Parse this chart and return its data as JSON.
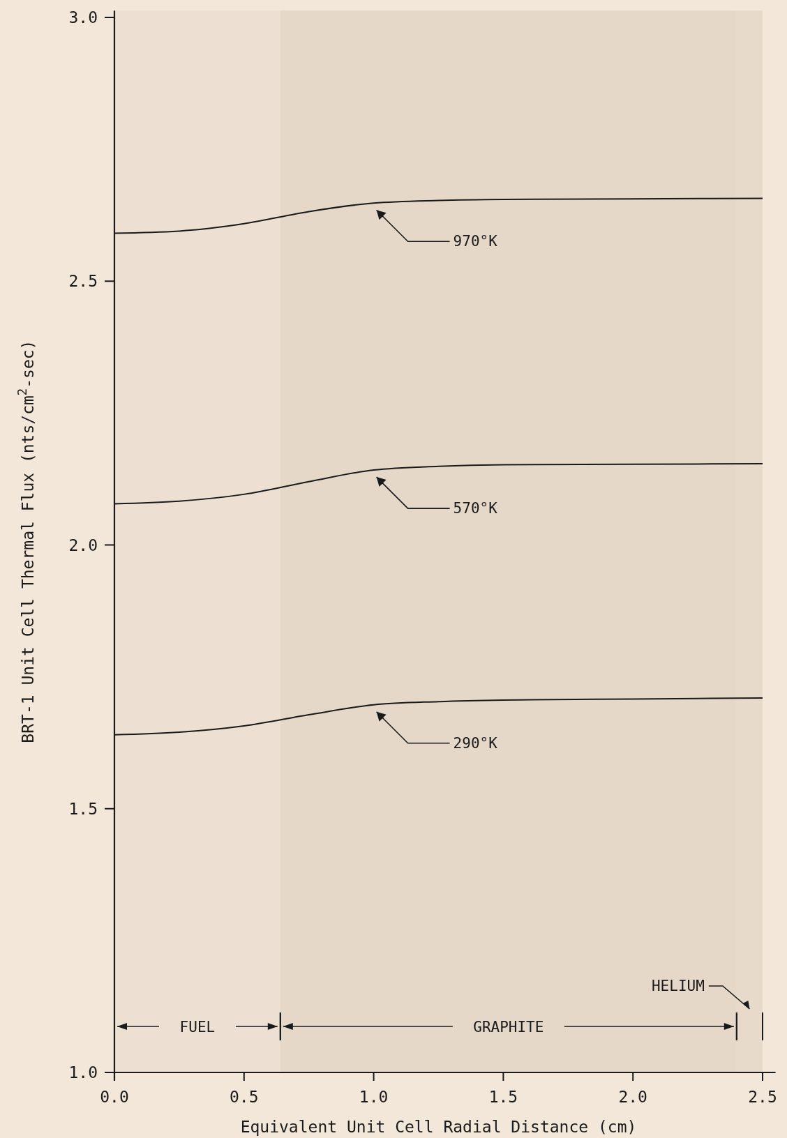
{
  "chart_data": {
    "type": "line",
    "xlabel": "Equivalent Unit Cell Radial Distance (cm)",
    "ylabel": "BRT-1 Unit Cell Thermal Flux (nts/cm$^{2}$-sec)",
    "x": [
      0,
      0.25,
      0.5,
      0.75,
      1.0,
      1.25,
      1.5,
      2.0,
      2.5
    ],
    "series": [
      {
        "name": "970°K",
        "color": "#1a1a1a",
        "values": [
          2.591,
          2.595,
          2.609,
          2.632,
          2.648,
          2.653,
          2.655,
          2.656,
          2.657
        ]
      },
      {
        "name": "570°K",
        "color": "#1a1a1a",
        "values": [
          2.078,
          2.083,
          2.096,
          2.12,
          2.142,
          2.149,
          2.152,
          2.153,
          2.154
        ]
      },
      {
        "name": "290°K",
        "color": "#1a1a1a",
        "values": [
          1.64,
          1.645,
          1.657,
          1.678,
          1.697,
          1.703,
          1.706,
          1.708,
          1.71
        ]
      }
    ],
    "xlim": [
      0,
      2.55
    ],
    "xticks": [
      {
        "value": 0,
        "label": "0.0"
      },
      0.5,
      {
        "value": 1,
        "label": "1.0"
      },
      1.5,
      {
        "value": 2,
        "label": "2.0"
      },
      2.5
    ],
    "ylim": [
      1,
      3.013
    ],
    "yticks": [
      {
        "value": 1,
        "label": "1.0"
      },
      1.5,
      {
        "value": 2,
        "label": "2.0"
      },
      2.5,
      {
        "value": 3,
        "label": "3.0"
      }
    ],
    "bands": [
      {
        "axis": "x",
        "from": 0,
        "to": 0.64,
        "label": "FUEL",
        "color": "#ede0d2"
      },
      {
        "axis": "x",
        "from": 0.64,
        "to": 2.4,
        "label": "GRAPHITE",
        "color": "#e6d8c8"
      },
      {
        "axis": "x",
        "from": 2.4,
        "to": 2.5,
        "label": "HELIUM",
        "color": "#e8dacb"
      }
    ],
    "grid": false,
    "legend": false,
    "marker": "none",
    "line_style": "solid"
  }
}
